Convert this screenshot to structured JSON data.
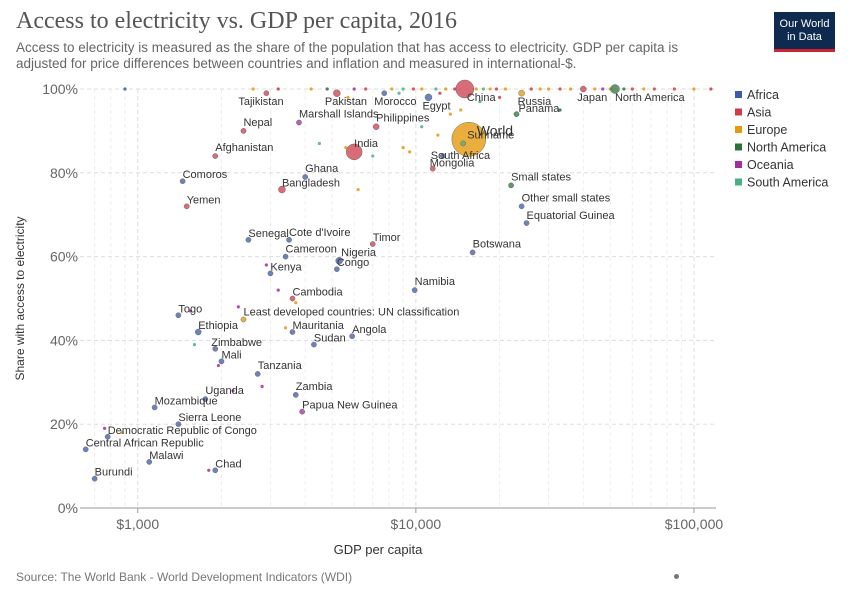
{
  "header": {
    "title": "Access to electricity vs. GDP per capita, 2016",
    "subtitle": "Access to electricity is measured as the share of the population that has access to electricity. GDP per capita is adjusted for price differences between countries and inflation and measured in international-$.",
    "logo_line1": "Our World",
    "logo_line2": "in Data"
  },
  "footer": {
    "source": "Source: The World Bank - World Development Indicators (WDI)"
  },
  "chart_data": {
    "type": "scatter",
    "xlabel": "GDP per capita",
    "ylabel": "Share with access to electricity",
    "x_scale": "log",
    "xlim": [
      620,
      120000
    ],
    "ylim": [
      0,
      100
    ],
    "x_ticks": [
      1000,
      10000,
      100000
    ],
    "x_tick_labels": [
      "$1,000",
      "$10,000",
      "$100,000"
    ],
    "y_ticks": [
      0,
      20,
      40,
      60,
      80,
      100
    ],
    "y_tick_labels": [
      "0%",
      "20%",
      "40%",
      "60%",
      "80%",
      "100%"
    ],
    "grid": true,
    "legend_position": "right",
    "legend": [
      {
        "name": "Africa",
        "color": "#3c5aa6"
      },
      {
        "name": "Asia",
        "color": "#cc3c4a"
      },
      {
        "name": "Europe",
        "color": "#e39a0c"
      },
      {
        "name": "North America",
        "color": "#2a7338"
      },
      {
        "name": "Oceania",
        "color": "#a32ca3"
      },
      {
        "name": "South America",
        "color": "#48b183"
      }
    ],
    "colors": {
      "Africa": "#3c5aa6",
      "Asia": "#cc3c4a",
      "Europe": "#e39a0c",
      "North America": "#2a7338",
      "Oceania": "#a32ca3",
      "South America": "#48b183",
      "World": "#e39a0c"
    },
    "labeled_points": [
      {
        "name": "Tajikistan",
        "x": 2900,
        "y": 99,
        "region": "Asia"
      },
      {
        "name": "Pakistan",
        "x": 5200,
        "y": 99,
        "region": "Asia"
      },
      {
        "name": "Morocco",
        "x": 7700,
        "y": 99,
        "region": "Africa"
      },
      {
        "name": "Egypt",
        "x": 11100,
        "y": 98,
        "region": "Africa"
      },
      {
        "name": "China",
        "x": 15000,
        "y": 100,
        "region": "Asia"
      },
      {
        "name": "Russia",
        "x": 24000,
        "y": 99,
        "region": "Europe"
      },
      {
        "name": "Japan",
        "x": 40000,
        "y": 100,
        "region": "Asia"
      },
      {
        "name": "North America",
        "x": 52000,
        "y": 100,
        "region": "North America"
      },
      {
        "name": "Panama",
        "x": 23000,
        "y": 94,
        "region": "North America"
      },
      {
        "name": "Marshall Islands",
        "x": 3800,
        "y": 92,
        "region": "Oceania"
      },
      {
        "name": "Philippines",
        "x": 7200,
        "y": 91,
        "region": "Asia"
      },
      {
        "name": "World",
        "x": 15500,
        "y": 88,
        "region": "World"
      },
      {
        "name": "Nepal",
        "x": 2400,
        "y": 90,
        "region": "Asia"
      },
      {
        "name": "India",
        "x": 6000,
        "y": 85,
        "region": "Asia"
      },
      {
        "name": "Suriname",
        "x": 14800,
        "y": 87,
        "region": "South America"
      },
      {
        "name": "South Africa",
        "x": 12500,
        "y": 84,
        "region": "Africa"
      },
      {
        "name": "Afghanistan",
        "x": 1900,
        "y": 84,
        "region": "Asia"
      },
      {
        "name": "Mongolia",
        "x": 11500,
        "y": 81,
        "region": "Asia"
      },
      {
        "name": "Ghana",
        "x": 4000,
        "y": 79,
        "region": "Africa"
      },
      {
        "name": "Comoros",
        "x": 1450,
        "y": 78,
        "region": "Africa"
      },
      {
        "name": "Bangladesh",
        "x": 3300,
        "y": 76,
        "region": "Asia"
      },
      {
        "name": "Small states",
        "x": 22000,
        "y": 77,
        "region": "North America"
      },
      {
        "name": "Other small states",
        "x": 24000,
        "y": 72,
        "region": "Africa"
      },
      {
        "name": "Yemen",
        "x": 1500,
        "y": 72,
        "region": "Asia"
      },
      {
        "name": "Equatorial Guinea",
        "x": 25000,
        "y": 68,
        "region": "Africa"
      },
      {
        "name": "Senegal",
        "x": 2500,
        "y": 64,
        "region": "Africa"
      },
      {
        "name": "Cote d'Ivoire",
        "x": 3500,
        "y": 64,
        "region": "Africa"
      },
      {
        "name": "Timor",
        "x": 7000,
        "y": 63,
        "region": "Asia"
      },
      {
        "name": "Botswana",
        "x": 16000,
        "y": 61,
        "region": "Africa"
      },
      {
        "name": "Cameroon",
        "x": 3400,
        "y": 60,
        "region": "Africa"
      },
      {
        "name": "Nigeria",
        "x": 5300,
        "y": 59,
        "region": "Africa"
      },
      {
        "name": "Congo",
        "x": 5200,
        "y": 57,
        "region": "Africa"
      },
      {
        "name": "Kenya",
        "x": 3000,
        "y": 56,
        "region": "Africa"
      },
      {
        "name": "Namibia",
        "x": 9900,
        "y": 52,
        "region": "Africa"
      },
      {
        "name": "Cambodia",
        "x": 3600,
        "y": 50,
        "region": "Asia"
      },
      {
        "name": "Togo",
        "x": 1400,
        "y": 46,
        "region": "Africa"
      },
      {
        "name": "Least developed countries: UN classification",
        "x": 2400,
        "y": 45,
        "region": "Europe"
      },
      {
        "name": "Ethiopia",
        "x": 1650,
        "y": 42,
        "region": "Africa"
      },
      {
        "name": "Mauritania",
        "x": 3600,
        "y": 42,
        "region": "Africa"
      },
      {
        "name": "Angola",
        "x": 5900,
        "y": 41,
        "region": "Africa"
      },
      {
        "name": "Zimbabwe",
        "x": 1900,
        "y": 38,
        "region": "Africa"
      },
      {
        "name": "Sudan",
        "x": 4300,
        "y": 39,
        "region": "Africa"
      },
      {
        "name": "Mali",
        "x": 2000,
        "y": 35,
        "region": "Africa"
      },
      {
        "name": "Tanzania",
        "x": 2700,
        "y": 32,
        "region": "Africa"
      },
      {
        "name": "Uganda",
        "x": 1750,
        "y": 26,
        "region": "Africa"
      },
      {
        "name": "Zambia",
        "x": 3700,
        "y": 27,
        "region": "Africa"
      },
      {
        "name": "Mozambique",
        "x": 1150,
        "y": 24,
        "region": "Africa"
      },
      {
        "name": "Papua New Guinea",
        "x": 3900,
        "y": 23,
        "region": "Oceania"
      },
      {
        "name": "Sierra Leone",
        "x": 1400,
        "y": 20,
        "region": "Africa"
      },
      {
        "name": "Democratic Republic of Congo",
        "x": 780,
        "y": 17,
        "region": "Africa"
      },
      {
        "name": "Central African Republic",
        "x": 650,
        "y": 14,
        "region": "Africa"
      },
      {
        "name": "Malawi",
        "x": 1100,
        "y": 11,
        "region": "Africa"
      },
      {
        "name": "Chad",
        "x": 1900,
        "y": 9,
        "region": "Africa"
      },
      {
        "name": "Burundi",
        "x": 700,
        "y": 7,
        "region": "Africa"
      }
    ],
    "bubble_sizes": {
      "China": 9,
      "India": 8,
      "World": 17,
      "Pakistan": 3.5,
      "Bangladesh": 3.5,
      "Nigeria": 3.5,
      "Ethiopia": 3,
      "Egypt": 3.5,
      "Russia": 3,
      "Japan": 3,
      "North America": 4.5,
      "Philippines": 3
    },
    "unlabeled_points": [
      {
        "x": 900,
        "y": 100,
        "region": "Africa"
      },
      {
        "x": 2600,
        "y": 100,
        "region": "Europe"
      },
      {
        "x": 3200,
        "y": 100,
        "region": "Asia"
      },
      {
        "x": 4200,
        "y": 100,
        "region": "Europe"
      },
      {
        "x": 4800,
        "y": 100,
        "region": "North America"
      },
      {
        "x": 6000,
        "y": 100,
        "region": "Oceania"
      },
      {
        "x": 6600,
        "y": 100,
        "region": "Asia"
      },
      {
        "x": 8200,
        "y": 100,
        "region": "Europe"
      },
      {
        "x": 9000,
        "y": 100,
        "region": "South America"
      },
      {
        "x": 9800,
        "y": 100,
        "region": "Asia"
      },
      {
        "x": 10500,
        "y": 100,
        "region": "Europe"
      },
      {
        "x": 11800,
        "y": 100,
        "region": "South America"
      },
      {
        "x": 12800,
        "y": 100,
        "region": "Europe"
      },
      {
        "x": 13800,
        "y": 100,
        "region": "Asia"
      },
      {
        "x": 16500,
        "y": 100,
        "region": "Europe"
      },
      {
        "x": 17500,
        "y": 100,
        "region": "South America"
      },
      {
        "x": 18500,
        "y": 100,
        "region": "Europe"
      },
      {
        "x": 19500,
        "y": 100,
        "region": "Asia"
      },
      {
        "x": 21000,
        "y": 100,
        "region": "Europe"
      },
      {
        "x": 26000,
        "y": 100,
        "region": "Asia"
      },
      {
        "x": 28000,
        "y": 100,
        "region": "Europe"
      },
      {
        "x": 30000,
        "y": 100,
        "region": "Europe"
      },
      {
        "x": 33000,
        "y": 100,
        "region": "Asia"
      },
      {
        "x": 36000,
        "y": 100,
        "region": "Europe"
      },
      {
        "x": 44000,
        "y": 100,
        "region": "Europe"
      },
      {
        "x": 47000,
        "y": 100,
        "region": "Oceania"
      },
      {
        "x": 50000,
        "y": 100,
        "region": "Europe"
      },
      {
        "x": 56000,
        "y": 100,
        "region": "North America"
      },
      {
        "x": 60000,
        "y": 100,
        "region": "Asia"
      },
      {
        "x": 66000,
        "y": 100,
        "region": "Europe"
      },
      {
        "x": 72000,
        "y": 100,
        "region": "Asia"
      },
      {
        "x": 85000,
        "y": 100,
        "region": "Asia"
      },
      {
        "x": 100000,
        "y": 100,
        "region": "Europe"
      },
      {
        "x": 115000,
        "y": 100,
        "region": "Asia"
      },
      {
        "x": 5700,
        "y": 98,
        "region": "Europe"
      },
      {
        "x": 8700,
        "y": 99,
        "region": "South America"
      },
      {
        "x": 12200,
        "y": 99,
        "region": "Asia"
      },
      {
        "x": 14500,
        "y": 95,
        "region": "Europe"
      },
      {
        "x": 17000,
        "y": 97,
        "region": "South America"
      },
      {
        "x": 20000,
        "y": 98,
        "region": "Asia"
      },
      {
        "x": 13300,
        "y": 94,
        "region": "Europe"
      },
      {
        "x": 33000,
        "y": 95,
        "region": "North America"
      },
      {
        "x": 10500,
        "y": 91,
        "region": "South America"
      },
      {
        "x": 12000,
        "y": 89,
        "region": "Europe"
      },
      {
        "x": 9000,
        "y": 86,
        "region": "Europe"
      },
      {
        "x": 9500,
        "y": 85,
        "region": "Europe"
      },
      {
        "x": 7000,
        "y": 84,
        "region": "South America"
      },
      {
        "x": 4500,
        "y": 87,
        "region": "South America"
      },
      {
        "x": 5600,
        "y": 86,
        "region": "Europe"
      },
      {
        "x": 6200,
        "y": 76,
        "region": "Europe"
      },
      {
        "x": 3200,
        "y": 52,
        "region": "Oceania"
      },
      {
        "x": 2900,
        "y": 58,
        "region": "Oceania"
      },
      {
        "x": 3700,
        "y": 49,
        "region": "Europe"
      },
      {
        "x": 2300,
        "y": 48,
        "region": "Oceania"
      },
      {
        "x": 1550,
        "y": 47,
        "region": "Oceania"
      },
      {
        "x": 3400,
        "y": 43,
        "region": "Europe"
      },
      {
        "x": 1600,
        "y": 39,
        "region": "South America"
      },
      {
        "x": 1950,
        "y": 34,
        "region": "Oceania"
      },
      {
        "x": 2200,
        "y": 28,
        "region": "Oceania"
      },
      {
        "x": 2800,
        "y": 29,
        "region": "Oceania"
      },
      {
        "x": 760,
        "y": 19,
        "region": "Oceania"
      },
      {
        "x": 880,
        "y": 18,
        "region": "Europe"
      },
      {
        "x": 1800,
        "y": 9,
        "region": "Oceania"
      }
    ]
  }
}
